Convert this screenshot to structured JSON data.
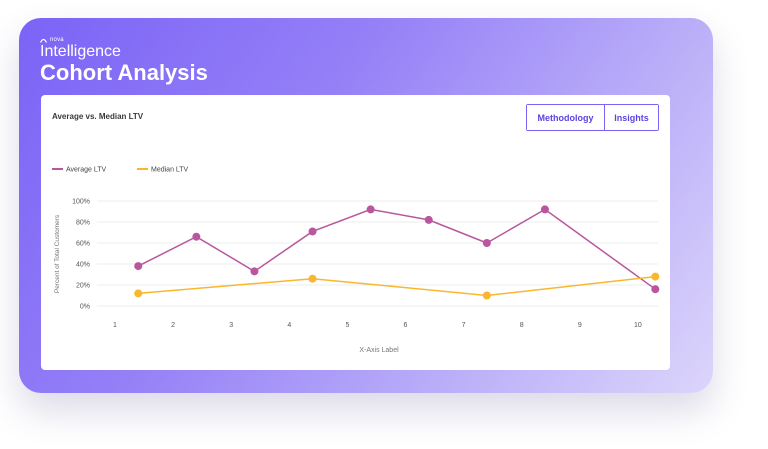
{
  "brand": {
    "logo_text": "nova",
    "product": "Intelligence"
  },
  "page": {
    "title": "Cohort Analysis"
  },
  "card": {
    "title": "Average vs. Median LTV",
    "buttons": {
      "methodology": "Methodology",
      "insights": "Insights"
    }
  },
  "colors": {
    "accent": "#7b63f6",
    "average": "#b8579e",
    "median": "#f9b72e"
  },
  "chart_data": {
    "type": "line",
    "x": [
      1,
      2,
      3,
      4,
      5,
      6,
      7,
      8,
      9,
      10
    ],
    "xlabel": "X-Axis Label",
    "ylabel": "Percent of Total Customers",
    "ylim": [
      0,
      100
    ],
    "yticks": [
      "0%",
      "20%",
      "40%",
      "60%",
      "80%",
      "100%"
    ],
    "legend_position": "top-left",
    "grid": true,
    "series": [
      {
        "name": "Average LTV",
        "color": "#b8579e",
        "points": [
          [
            1.4,
            38
          ],
          [
            2.4,
            66
          ],
          [
            3.4,
            33
          ],
          [
            4.4,
            71
          ],
          [
            5.4,
            92
          ],
          [
            6.4,
            82
          ],
          [
            7.4,
            60
          ],
          [
            8.4,
            92
          ],
          [
            10.3,
            16
          ]
        ]
      },
      {
        "name": "Median LTV",
        "color": "#f9b72e",
        "points": [
          [
            1.4,
            12
          ],
          [
            4.4,
            26
          ],
          [
            7.4,
            10
          ],
          [
            10.3,
            28
          ]
        ]
      }
    ]
  }
}
